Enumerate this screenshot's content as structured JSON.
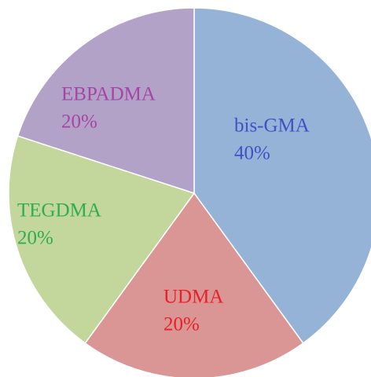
{
  "chart_data": {
    "type": "pie",
    "categories": [
      "bis-GMA",
      "UDMA",
      "TEGDMA",
      "EBPADMA"
    ],
    "values": [
      40,
      20,
      20,
      20
    ],
    "value_labels": [
      "40%",
      "20%",
      "20%",
      "20%"
    ],
    "colors": [
      "#95b3d7",
      "#d99694",
      "#c3d69b",
      "#b3a2c7"
    ],
    "label_colors": [
      "#3f51c4",
      "#e8202a",
      "#2fae4e",
      "#a545a6"
    ]
  }
}
